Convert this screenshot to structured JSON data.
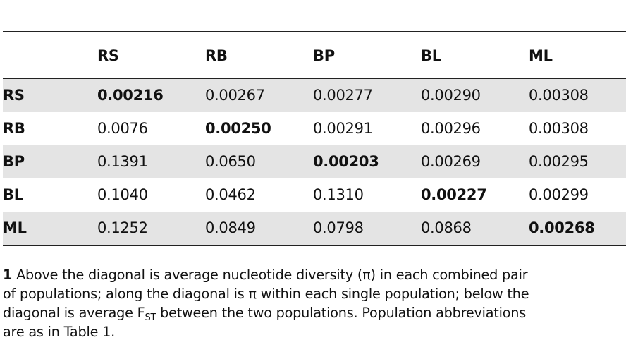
{
  "table": {
    "headers": [
      "",
      "RS",
      "RB",
      "BP",
      "BL",
      "ML"
    ],
    "rows": [
      {
        "label": "RS",
        "cells": [
          "0.00216",
          "0.00267",
          "0.00277",
          "0.00290",
          "0.00308"
        ],
        "diag": 0
      },
      {
        "label": "RB",
        "cells": [
          "0.0076",
          "0.00250",
          "0.00291",
          "0.00296",
          "0.00308"
        ],
        "diag": 1
      },
      {
        "label": "BP",
        "cells": [
          "0.1391",
          "0.0650",
          "0.00203",
          "0.00269",
          "0.00295"
        ],
        "diag": 2
      },
      {
        "label": "BL",
        "cells": [
          "0.1040",
          "0.0462",
          "0.1310",
          "0.00227",
          "0.00299"
        ],
        "diag": 3
      },
      {
        "label": "ML",
        "cells": [
          "0.1252",
          "0.0849",
          "0.0798",
          "0.0868",
          "0.00268"
        ],
        "diag": 4
      }
    ]
  },
  "caption": {
    "number": "1",
    "line1": "Above the diagonal is average nucleotide diversity (π) in each combined pair",
    "line2": "of populations; along the diagonal is π within each single population; below the",
    "line3_pre": "diagonal is average F",
    "line3_sub": "ST",
    "line3_post": " between the two populations. Population abbreviations",
    "line4": "are as in Table 1."
  }
}
